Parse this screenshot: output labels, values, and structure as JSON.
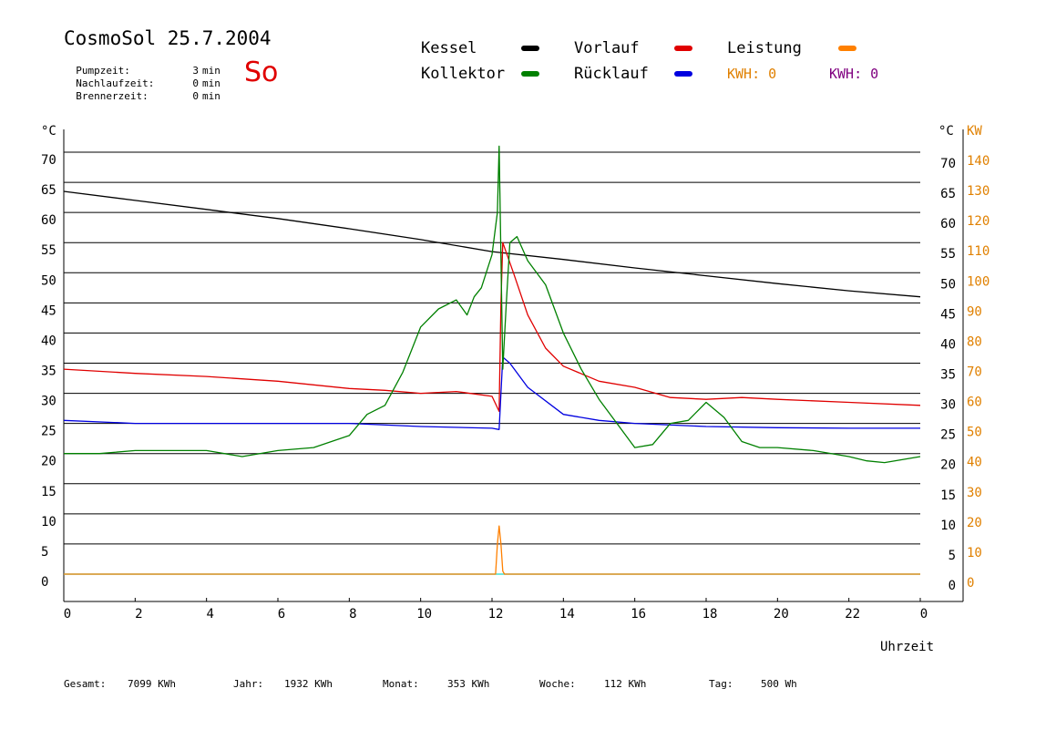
{
  "header": {
    "title": "CosmoSol 25.7.2004",
    "day": "So",
    "info": [
      {
        "label": "Pumpzeit:",
        "value": "3",
        "unit": "min"
      },
      {
        "label": "Nachlaufzeit:",
        "value": "0",
        "unit": "min"
      },
      {
        "label": "Brennerzeit:",
        "value": "0",
        "unit": "min"
      }
    ]
  },
  "legend": {
    "kessel": "Kessel",
    "kollektor": "Kollektor",
    "vorlauf": "Vorlauf",
    "ruecklauf": "Rücklauf",
    "leistung": "Leistung",
    "kwh1": "KWH: 0",
    "kwh2": "KWH: 0"
  },
  "colors": {
    "kessel": "#000000",
    "kollektor": "#008000",
    "vorlauf": "#e00000",
    "ruecklauf": "#0000e0",
    "leistung": "#ff8000",
    "kwh1": "#e08000",
    "kwh2": "#800080",
    "baseline": "#40e0d0"
  },
  "summary": {
    "gesamt_label": "Gesamt:",
    "gesamt_value": "7099 KWh",
    "jahr_label": "Jahr:",
    "jahr_value": "1932 KWh",
    "monat_label": "Monat:",
    "monat_value": "353 KWh",
    "woche_label": "Woche:",
    "woche_value": "112 KWh",
    "tag_label": "Tag:",
    "tag_value": "500 Wh"
  },
  "chart_data": {
    "type": "line",
    "xlabel": "Uhrzeit",
    "ylabel_left": "°C",
    "ylabel_right_1": "°C",
    "ylabel_right_2": "KW",
    "xlim": [
      0,
      24
    ],
    "ylim": [
      0,
      70
    ],
    "y2lim": [
      0,
      140
    ],
    "x_tick_labels": [
      "0",
      "2",
      "4",
      "6",
      "8",
      "10",
      "12",
      "14",
      "16",
      "18",
      "20",
      "22",
      "0"
    ],
    "y_ticks": [
      0,
      5,
      10,
      15,
      20,
      25,
      30,
      35,
      40,
      45,
      50,
      55,
      60,
      65,
      70
    ],
    "y2_ticks": [
      0,
      10,
      20,
      30,
      40,
      50,
      60,
      70,
      80,
      90,
      100,
      110,
      120,
      130,
      140
    ],
    "grid": true,
    "series": [
      {
        "name": "Kessel",
        "color": "#000000",
        "x": [
          0,
          2,
          4,
          6,
          8,
          10,
          12,
          14,
          16,
          18,
          20,
          22,
          24
        ],
        "y": [
          63.5,
          62,
          60.5,
          59,
          57.3,
          55.5,
          53.5,
          52.2,
          50.8,
          49.5,
          48.2,
          47,
          46
        ]
      },
      {
        "name": "Vorlauf",
        "color": "#e00000",
        "x": [
          0,
          2,
          4,
          6,
          8,
          9,
          10,
          11,
          12,
          12.2,
          12.25,
          12.3,
          12.6,
          13,
          13.5,
          14,
          15,
          16,
          17,
          18,
          19,
          20,
          22,
          24
        ],
        "y": [
          34,
          33.3,
          32.8,
          32,
          30.8,
          30.5,
          30,
          30.3,
          29.5,
          27,
          45,
          55,
          50,
          43,
          37.5,
          34.5,
          32,
          31,
          29.3,
          29,
          29.3,
          29,
          28.5,
          28
        ]
      },
      {
        "name": "Rücklauf",
        "color": "#0000e0",
        "x": [
          0,
          2,
          4,
          6,
          8,
          10,
          12,
          12.2,
          12.3,
          12.5,
          13,
          14,
          15,
          16,
          18,
          20,
          22,
          24
        ],
        "y": [
          25.5,
          25,
          25,
          25,
          25,
          24.5,
          24.2,
          24,
          36,
          35,
          31,
          26.5,
          25.5,
          25,
          24.5,
          24.3,
          24.2,
          24.2
        ]
      },
      {
        "name": "Kollektor",
        "color": "#008000",
        "x": [
          0,
          1,
          2,
          3,
          4,
          5,
          6,
          7,
          8,
          8.5,
          9,
          9.5,
          10,
          10.5,
          11,
          11.3,
          11.5,
          11.7,
          12,
          12.15,
          12.2,
          12.3,
          12.4,
          12.5,
          12.7,
          13,
          13.5,
          14,
          14.5,
          15,
          15.5,
          16,
          16.5,
          17,
          17.5,
          18,
          18.5,
          19,
          19.5,
          20,
          21,
          22,
          22.5,
          23,
          24
        ],
        "y": [
          20,
          20,
          20.5,
          20.5,
          20.5,
          19.5,
          20.5,
          21,
          23,
          26.5,
          28,
          33.5,
          41,
          44,
          45.5,
          43,
          46,
          47.5,
          53,
          60,
          71,
          34,
          45,
          55,
          56,
          52,
          48,
          40,
          34,
          29,
          25,
          21,
          21.5,
          25,
          25.5,
          28.5,
          26,
          22,
          21,
          21,
          20.5,
          19.5,
          18.8,
          18.5,
          19.5
        ]
      },
      {
        "name": "Leistung",
        "color": "#ff8000",
        "axis": "right",
        "x": [
          0,
          12.1,
          12.15,
          12.2,
          12.25,
          12.3,
          12.35,
          24
        ],
        "y": [
          0,
          0,
          10,
          16,
          10,
          1,
          0,
          0
        ]
      }
    ]
  }
}
